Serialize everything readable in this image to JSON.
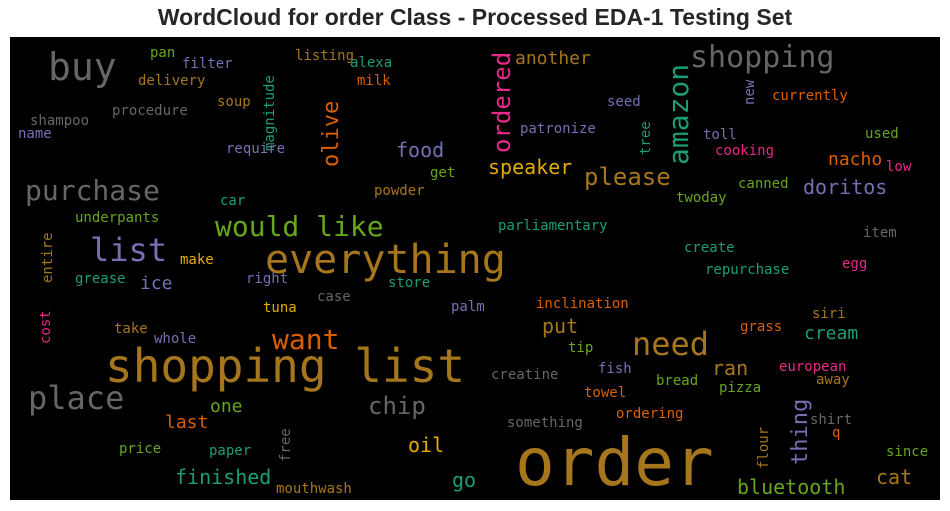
{
  "chart_data": {
    "type": "wordcloud",
    "title": "WordCloud for order Class - Processed EDA-1 Testing Set",
    "background": "#000000",
    "palette": [
      "#1b9e77",
      "#d95f02",
      "#7570b3",
      "#e7298a",
      "#66a61e",
      "#e6ab02",
      "#a6761d",
      "#666666"
    ],
    "words": [
      {
        "text": "order",
        "color": "#a6761d"
      },
      {
        "text": "shopping list",
        "color": "#a6761d"
      },
      {
        "text": "everything",
        "color": "#a6761d"
      },
      {
        "text": "buy",
        "color": "#666666"
      },
      {
        "text": "shopping",
        "color": "#666666"
      },
      {
        "text": "amazon",
        "color": "#1b9e77"
      },
      {
        "text": "ordered",
        "color": "#e7298a"
      },
      {
        "text": "purchase",
        "color": "#666666"
      },
      {
        "text": "list",
        "color": "#7570b3"
      },
      {
        "text": "would like",
        "color": "#66a61e"
      },
      {
        "text": "place",
        "color": "#666666"
      },
      {
        "text": "need",
        "color": "#a6761d"
      },
      {
        "text": "want",
        "color": "#d95f02"
      },
      {
        "text": "please",
        "color": "#a6761d"
      },
      {
        "text": "olive",
        "color": "#d95f02"
      },
      {
        "text": "food",
        "color": "#7570b3"
      },
      {
        "text": "chip",
        "color": "#666666"
      },
      {
        "text": "thing",
        "color": "#7570b3"
      },
      {
        "text": "speaker",
        "color": "#e6ab02"
      },
      {
        "text": "doritos",
        "color": "#7570b3"
      },
      {
        "text": "nacho",
        "color": "#d95f02"
      },
      {
        "text": "cream",
        "color": "#1b9e77"
      },
      {
        "text": "bluetooth",
        "color": "#66a61e"
      },
      {
        "text": "finished",
        "color": "#1b9e77"
      },
      {
        "text": "oil",
        "color": "#e6ab02"
      },
      {
        "text": "cat",
        "color": "#a6761d"
      },
      {
        "text": "ran",
        "color": "#a6761d"
      },
      {
        "text": "put",
        "color": "#a6761d"
      },
      {
        "text": "go",
        "color": "#1b9e77"
      },
      {
        "text": "ice",
        "color": "#7570b3"
      },
      {
        "text": "last",
        "color": "#d95f02"
      },
      {
        "text": "one",
        "color": "#66a61e"
      },
      {
        "text": "another",
        "color": "#a6761d"
      },
      {
        "text": "magnitude",
        "color": "#1b9e77"
      },
      {
        "text": "pan",
        "color": "#66a61e"
      },
      {
        "text": "filter",
        "color": "#7570b3"
      },
      {
        "text": "listing",
        "color": "#a6761d"
      },
      {
        "text": "alexa",
        "color": "#1b9e77"
      },
      {
        "text": "delivery",
        "color": "#a6761d"
      },
      {
        "text": "milk",
        "color": "#d95f02"
      },
      {
        "text": "procedure",
        "color": "#666666"
      },
      {
        "text": "soup",
        "color": "#a6761d"
      },
      {
        "text": "shampoo",
        "color": "#666666"
      },
      {
        "text": "name",
        "color": "#7570b3"
      },
      {
        "text": "require",
        "color": "#7570b3"
      },
      {
        "text": "patronize",
        "color": "#7570b3"
      },
      {
        "text": "seed",
        "color": "#7570b3"
      },
      {
        "text": "tree",
        "color": "#1b9e77"
      },
      {
        "text": "new",
        "color": "#7570b3"
      },
      {
        "text": "currently",
        "color": "#d95f02"
      },
      {
        "text": "toll",
        "color": "#7570b3"
      },
      {
        "text": "used",
        "color": "#66a61e"
      },
      {
        "text": "cooking",
        "color": "#e7298a"
      },
      {
        "text": "low",
        "color": "#e7298a"
      },
      {
        "text": "get",
        "color": "#66a61e"
      },
      {
        "text": "powder",
        "color": "#a6761d"
      },
      {
        "text": "canned",
        "color": "#66a61e"
      },
      {
        "text": "twoday",
        "color": "#66a61e"
      },
      {
        "text": "car",
        "color": "#1b9e77"
      },
      {
        "text": "underpants",
        "color": "#66a61e"
      },
      {
        "text": "parliamentary",
        "color": "#1b9e77"
      },
      {
        "text": "item",
        "color": "#666666"
      },
      {
        "text": "create",
        "color": "#1b9e77"
      },
      {
        "text": "repurchase",
        "color": "#1b9e77"
      },
      {
        "text": "egg",
        "color": "#e7298a"
      },
      {
        "text": "entire",
        "color": "#a6761d"
      },
      {
        "text": "make",
        "color": "#e6ab02"
      },
      {
        "text": "grease",
        "color": "#1b9e77"
      },
      {
        "text": "right",
        "color": "#7570b3"
      },
      {
        "text": "store",
        "color": "#1b9e77"
      },
      {
        "text": "case",
        "color": "#666666"
      },
      {
        "text": "palm",
        "color": "#7570b3"
      },
      {
        "text": "inclination",
        "color": "#d95f02"
      },
      {
        "text": "tuna",
        "color": "#e6ab02"
      },
      {
        "text": "cost",
        "color": "#e7298a"
      },
      {
        "text": "take",
        "color": "#a6761d"
      },
      {
        "text": "whole",
        "color": "#7570b3"
      },
      {
        "text": "siri",
        "color": "#a6761d"
      },
      {
        "text": "grass",
        "color": "#d95f02"
      },
      {
        "text": "tip",
        "color": "#66a61e"
      },
      {
        "text": "creatine",
        "color": "#666666"
      },
      {
        "text": "fish",
        "color": "#7570b3"
      },
      {
        "text": "towel",
        "color": "#d95f02"
      },
      {
        "text": "bread",
        "color": "#66a61e"
      },
      {
        "text": "pizza",
        "color": "#66a61e"
      },
      {
        "text": "european",
        "color": "#e7298a"
      },
      {
        "text": "away",
        "color": "#a6761d"
      },
      {
        "text": "ordering",
        "color": "#d95f02"
      },
      {
        "text": "something",
        "color": "#666666"
      },
      {
        "text": "shirt",
        "color": "#666666"
      },
      {
        "text": "q",
        "color": "#d95f02"
      },
      {
        "text": "flour",
        "color": "#a6761d"
      },
      {
        "text": "since",
        "color": "#66a61e"
      },
      {
        "text": "price",
        "color": "#66a61e"
      },
      {
        "text": "paper",
        "color": "#1b9e77"
      },
      {
        "text": "free",
        "color": "#666666"
      },
      {
        "text": "mouthwash",
        "color": "#a6761d"
      }
    ]
  }
}
